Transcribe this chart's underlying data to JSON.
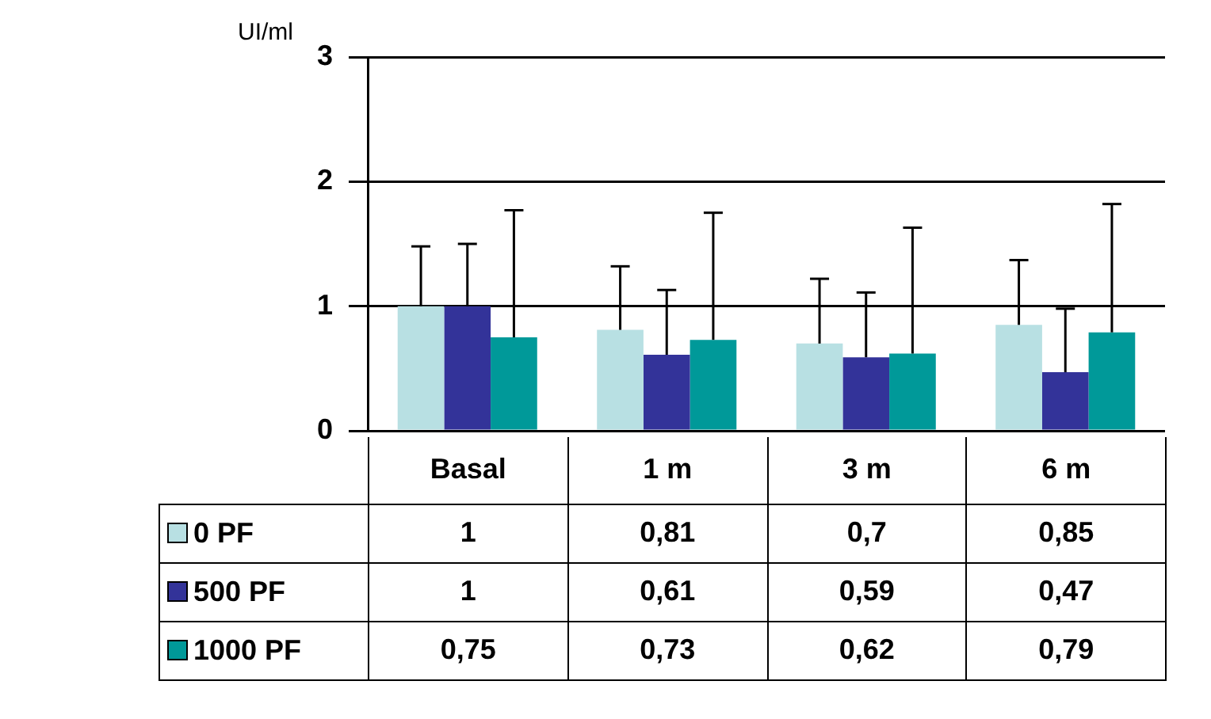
{
  "chart_data": {
    "type": "bar",
    "ylabel": "UI/ml",
    "categories": [
      "Basal",
      "1 m",
      "3 m",
      "6 m"
    ],
    "ylim": [
      0,
      3
    ],
    "yticks": [
      0,
      1,
      2,
      3
    ],
    "grid": "y",
    "legend": "bottom",
    "series": [
      {
        "name": "0 PF",
        "color": "#b8e0e3",
        "values": [
          1,
          0.81,
          0.7,
          0.85
        ],
        "value_labels": [
          "1",
          "0,81",
          "0,7",
          "0,85"
        ],
        "errors": [
          [
            1,
            1.48
          ],
          [
            0.81,
            1.32
          ],
          [
            0.7,
            1.22
          ],
          [
            0.85,
            1.37
          ]
        ]
      },
      {
        "name": "500 PF",
        "color": "#333399",
        "values": [
          1,
          0.61,
          0.59,
          0.47
        ],
        "value_labels": [
          "1",
          "0,61",
          "0,59",
          "0,47"
        ],
        "errors": [
          [
            1,
            1.5
          ],
          [
            0.61,
            1.13
          ],
          [
            0.59,
            1.11
          ],
          [
            0.47,
            0.98
          ]
        ]
      },
      {
        "name": "1000 PF",
        "color": "#009999",
        "values": [
          0.75,
          0.73,
          0.62,
          0.79
        ],
        "value_labels": [
          "0,75",
          "0,73",
          "0,62",
          "0,79"
        ],
        "errors": [
          [
            0.75,
            1.77
          ],
          [
            0.73,
            1.75
          ],
          [
            0.62,
            1.63
          ],
          [
            0.79,
            1.82
          ]
        ]
      }
    ]
  }
}
